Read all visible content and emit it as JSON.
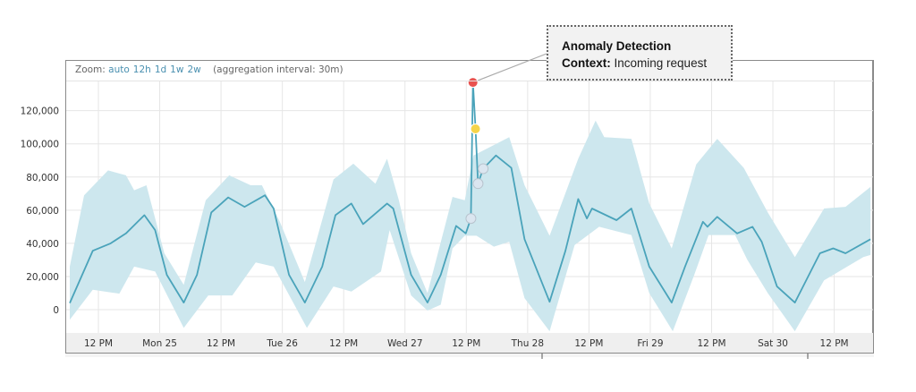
{
  "toolbar": {
    "zoom_label": "Zoom:",
    "zoom_options": [
      "auto",
      "12h",
      "1d",
      "1w",
      "2w"
    ],
    "aggregation": "(aggregation interval: 30m)"
  },
  "annotation": {
    "title": "Anomaly Detection",
    "context_label": "Context:",
    "context_value": "Incoming request"
  },
  "colors": {
    "line": "#4aa3ba",
    "band": "#cde7ee",
    "anomaly_high": "#e8524f",
    "anomaly_medium": "#f5d44a",
    "anomaly_low": "#dbe6f0"
  },
  "chart_data": {
    "type": "line",
    "x_format": "day-of-month HH:MM",
    "xlim": [
      "24 05:42",
      "30 19:36"
    ],
    "ylim": [
      -14000,
      137600
    ],
    "grid": true,
    "y_ticks": [
      0,
      20000,
      40000,
      60000,
      80000,
      100000,
      120000
    ],
    "y_tick_labels": [
      "0",
      "20,000",
      "40,000",
      "60,000",
      "80,000",
      "100,000",
      "120,000"
    ],
    "x_ticks": [
      {
        "x": "24 12:00",
        "label": "12 PM"
      },
      {
        "x": "25 00:00",
        "label": "Mon 25"
      },
      {
        "x": "25 12:00",
        "label": "12 PM"
      },
      {
        "x": "26 00:00",
        "label": "Tue 26"
      },
      {
        "x": "26 12:00",
        "label": "12 PM"
      },
      {
        "x": "27 00:00",
        "label": "Wed 27"
      },
      {
        "x": "27 12:00",
        "label": "12 PM"
      },
      {
        "x": "28 00:00",
        "label": "Thu 28"
      },
      {
        "x": "28 12:00",
        "label": "12 PM"
      },
      {
        "x": "29 00:00",
        "label": "Fri 29"
      },
      {
        "x": "29 12:00",
        "label": "12 PM"
      },
      {
        "x": "30 00:00",
        "label": "Sat 30"
      },
      {
        "x": "30 12:00",
        "label": "12 PM"
      }
    ],
    "series": [
      {
        "points": [
          [
            "24 06:24",
            4000
          ],
          [
            "24 10:54",
            35500
          ],
          [
            "24 14:24",
            40000
          ],
          [
            "24 17:24",
            46000
          ],
          [
            "24 21:00",
            57000
          ],
          [
            "24 23:06",
            48000
          ],
          [
            "25 01:24",
            21000
          ],
          [
            "25 04:42",
            4300
          ],
          [
            "25 07:18",
            21000
          ],
          [
            "25 10:06",
            58600
          ],
          [
            "25 13:24",
            67700
          ],
          [
            "25 16:36",
            62000
          ],
          [
            "25 20:36",
            69000
          ],
          [
            "25 22:18",
            61000
          ],
          [
            "26 01:18",
            21000
          ],
          [
            "26 04:24",
            4300
          ],
          [
            "26 07:48",
            26000
          ],
          [
            "26 10:24",
            57000
          ],
          [
            "26 13:30",
            64000
          ],
          [
            "26 15:48",
            51600
          ],
          [
            "26 20:30",
            64000
          ],
          [
            "26 21:42",
            61000
          ],
          [
            "27 01:12",
            21000
          ],
          [
            "27 04:24",
            4300
          ],
          [
            "27 07:00",
            21000
          ],
          [
            "27 10:00",
            50500
          ],
          [
            "27 11:54",
            46000
          ],
          [
            "27 12:54",
            55000
          ],
          [
            "27 13:18",
            137000
          ],
          [
            "27 13:48",
            109000
          ],
          [
            "27 14:18",
            76000
          ],
          [
            "27 15:18",
            85000
          ],
          [
            "27 17:48",
            93000
          ],
          [
            "27 20:48",
            85500
          ],
          [
            "27 23:24",
            42500
          ],
          [
            "28 04:18",
            4800
          ],
          [
            "28 07:24",
            35500
          ],
          [
            "28 09:54",
            66700
          ],
          [
            "28 11:36",
            55000
          ],
          [
            "28 12:36",
            61000
          ],
          [
            "28 17:24",
            54000
          ],
          [
            "28 20:18",
            61000
          ],
          [
            "28 23:48",
            26000
          ],
          [
            "29 04:12",
            4300
          ],
          [
            "29 06:48",
            26000
          ],
          [
            "29 10:18",
            53000
          ],
          [
            "29 11:12",
            50000
          ],
          [
            "29 13:06",
            56000
          ],
          [
            "29 17:00",
            46000
          ],
          [
            "29 20:00",
            50000
          ],
          [
            "29 21:48",
            41000
          ],
          [
            "30 00:48",
            14000
          ],
          [
            "30 04:18",
            4300
          ],
          [
            "30 09:12",
            34000
          ],
          [
            "30 11:48",
            37000
          ],
          [
            "30 14:12",
            34000
          ],
          [
            "30 19:06",
            42500
          ]
        ]
      }
    ],
    "band": {
      "upper": [
        [
          "24 06:24",
          26000
        ],
        [
          "24 09:12",
          69000
        ],
        [
          "24 13:54",
          84000
        ],
        [
          "24 17:24",
          81000
        ],
        [
          "24 19:00",
          72000
        ],
        [
          "24 21:24",
          75000
        ],
        [
          "25 00:54",
          34000
        ],
        [
          "25 04:42",
          15000
        ],
        [
          "25 09:00",
          66000
        ],
        [
          "25 13:36",
          81000
        ],
        [
          "25 17:48",
          75000
        ],
        [
          "25 20:00",
          75000
        ],
        [
          "25 23:30",
          53000
        ],
        [
          "26 04:24",
          16700
        ],
        [
          "26 10:00",
          78500
        ],
        [
          "26 13:54",
          88000
        ],
        [
          "26 18:12",
          76000
        ],
        [
          "26 20:30",
          91000
        ],
        [
          "26 22:48",
          66000
        ],
        [
          "27 01:12",
          34000
        ],
        [
          "27 04:24",
          10000
        ],
        [
          "27 09:18",
          68000
        ],
        [
          "27 11:42",
          66000
        ],
        [
          "27 13:24",
          93000
        ],
        [
          "27 20:24",
          104000
        ],
        [
          "27 23:24",
          75000
        ],
        [
          "28 04:18",
          44600
        ],
        [
          "28 09:54",
          91000
        ],
        [
          "28 13:18",
          114000
        ],
        [
          "28 15:00",
          104000
        ],
        [
          "28 20:18",
          103000
        ],
        [
          "28 23:48",
          64000
        ],
        [
          "29 04:12",
          37000
        ],
        [
          "29 09:00",
          87600
        ],
        [
          "29 13:06",
          103000
        ],
        [
          "29 18:18",
          85500
        ],
        [
          "29 23:00",
          58600
        ],
        [
          "30 04:18",
          31700
        ],
        [
          "30 10:00",
          61000
        ],
        [
          "30 14:12",
          62000
        ],
        [
          "30 19:06",
          74000
        ]
      ],
      "lower": [
        [
          "24 06:24",
          -6000
        ],
        [
          "24 10:54",
          12000
        ],
        [
          "24 16:06",
          9700
        ],
        [
          "24 19:00",
          26000
        ],
        [
          "24 23:06",
          23000
        ],
        [
          "25 04:42",
          -11000
        ],
        [
          "25 09:30",
          8600
        ],
        [
          "25 14:12",
          8600
        ],
        [
          "25 18:48",
          28500
        ],
        [
          "25 22:18",
          26000
        ],
        [
          "26 04:48",
          -11000
        ],
        [
          "26 10:00",
          14000
        ],
        [
          "26 13:30",
          11000
        ],
        [
          "26 19:18",
          23000
        ],
        [
          "26 21:00",
          48000
        ],
        [
          "27 01:12",
          8600
        ],
        [
          "27 04:24",
          -500
        ],
        [
          "27 07:00",
          3000
        ],
        [
          "27 09:18",
          37000
        ],
        [
          "27 11:42",
          44600
        ],
        [
          "27 14:00",
          44600
        ],
        [
          "27 17:24",
          38000
        ],
        [
          "27 20:24",
          41000
        ],
        [
          "27 23:24",
          7000
        ],
        [
          "28 04:18",
          -13000
        ],
        [
          "28 09:12",
          39000
        ],
        [
          "28 14:00",
          50000
        ],
        [
          "28 20:18",
          45000
        ],
        [
          "28 23:48",
          10000
        ],
        [
          "29 04:24",
          -13000
        ],
        [
          "29 08:36",
          21000
        ],
        [
          "29 11:24",
          45000
        ],
        [
          "29 16:36",
          45000
        ],
        [
          "29 19:00",
          30000
        ],
        [
          "29 23:00",
          10000
        ],
        [
          "30 04:18",
          -13000
        ],
        [
          "30 10:00",
          17700
        ],
        [
          "30 17:42",
          31700
        ],
        [
          "30 19:06",
          33000
        ]
      ]
    },
    "anomaly_markers": [
      {
        "x": "27 12:54",
        "y": 55000,
        "severity": "low"
      },
      {
        "x": "27 13:18",
        "y": 137000,
        "severity": "high"
      },
      {
        "x": "27 13:48",
        "y": 109000,
        "severity": "medium"
      },
      {
        "x": "27 14:18",
        "y": 76000,
        "severity": "low"
      },
      {
        "x": "27 15:18",
        "y": 85000,
        "severity": "low"
      }
    ]
  }
}
